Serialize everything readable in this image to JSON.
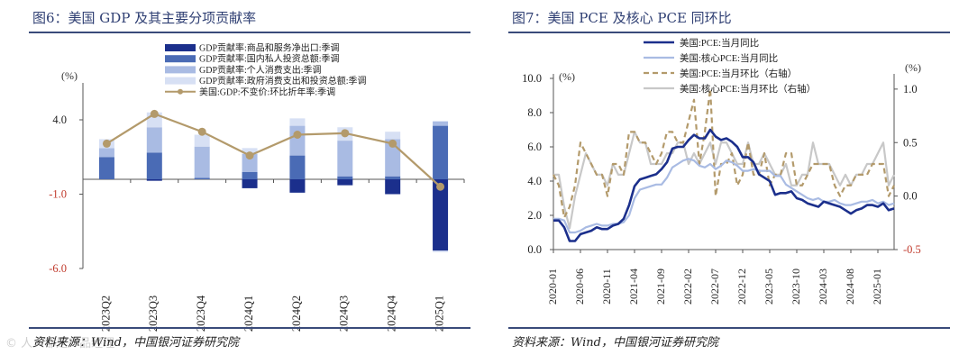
{
  "left_panel": {
    "title": "图6：美国 GDP 及其主要分项贡献率",
    "source": "资料来源：Wind，中国银河证券研究院",
    "watermark": "© 人人都是产品经理"
  },
  "right_panel": {
    "title": "图7：美国 PCE 及核心 PCE 同环比",
    "source": "资料来源：Wind，中国银河证券研究院"
  },
  "colors": {
    "dark_navy": "#1b2f8c",
    "medium_blue": "#4a6bb5",
    "light_blue": "#a9bbe3",
    "pale_blue": "#d7e0f4",
    "tan": "#b39a6b",
    "light_gray": "#c8c8c8",
    "neg_tick": "#c0392b",
    "title": "#2f3f73"
  },
  "chart_data": [
    {
      "type": "bar",
      "stacked": true,
      "title": "图6：美国 GDP 及其主要分项贡献率",
      "ylabel": "(%)",
      "ylim": [
        -6.0,
        6.0
      ],
      "yticks": [
        "4.0",
        "-1.0",
        "-6.0"
      ],
      "ytick_values": [
        4.0,
        -1.0,
        -6.0
      ],
      "categories": [
        "2023Q2",
        "2023Q3",
        "2023Q4",
        "2024Q1",
        "2024Q2",
        "2024Q3",
        "2024Q4",
        "2025Q1"
      ],
      "series": [
        {
          "name": "GDP贡献率:商品和服务净出口:季调",
          "color": "#1b2f8c",
          "values": [
            0.0,
            -0.1,
            0.0,
            -0.6,
            -0.9,
            -0.4,
            -1.0,
            -4.8
          ]
        },
        {
          "name": "GDP贡献率:国内私人投资总额:季调",
          "color": "#4a6bb5",
          "values": [
            1.5,
            1.8,
            0.1,
            0.5,
            1.6,
            0.2,
            0.2,
            3.6
          ]
        },
        {
          "name": "GDP贡献率:个人消费支出:季调",
          "color": "#a9bbe3",
          "values": [
            0.6,
            1.7,
            2.1,
            1.2,
            2.0,
            2.4,
            2.5,
            0.3
          ]
        },
        {
          "name": "GDP贡献率:政府消费支出和投资总额:季调",
          "color": "#d7e0f4",
          "values": [
            0.6,
            1.0,
            0.8,
            0.4,
            0.5,
            0.9,
            0.5,
            -0.1
          ]
        }
      ],
      "line": {
        "name": "美国:GDP:不变价:环比折年率:季调",
        "color": "#b39a6b",
        "values": [
          2.4,
          4.4,
          3.2,
          1.6,
          3.0,
          3.1,
          2.4,
          -0.5
        ]
      }
    },
    {
      "type": "line",
      "title": "图7：美国 PCE 及核心 PCE 同环比",
      "ylabel_left": "(%)",
      "ylabel_right": "(%)",
      "ylim_left": [
        0.0,
        10.0
      ],
      "ylim_right": [
        -0.5,
        1.1
      ],
      "yticks_left": [
        "10.0",
        "8.0",
        "6.0",
        "4.0",
        "2.0",
        "0.0"
      ],
      "ytick_values_left": [
        10.0,
        8.0,
        6.0,
        4.0,
        2.0,
        0.0
      ],
      "yticks_right": [
        "1.0",
        "0.5",
        "0.0",
        "-0.5"
      ],
      "ytick_values_right": [
        1.0,
        0.5,
        0.0,
        -0.5
      ],
      "xtick_labels": [
        "2020-01",
        "2020-06",
        "2020-11",
        "2021-04",
        "2021-09",
        "2022-02",
        "2022-07",
        "2022-12",
        "2023-05",
        "2023-10",
        "2024-03",
        "2024-08",
        "2025-01"
      ],
      "n_points": 64,
      "series": [
        {
          "name": "美国:PCE:当月同比",
          "axis": "left",
          "style": "solid-thick",
          "color": "#1b2f8c",
          "values": [
            1.7,
            1.7,
            1.3,
            0.5,
            0.5,
            0.9,
            1.0,
            1.1,
            1.3,
            1.2,
            1.2,
            1.4,
            1.5,
            1.8,
            2.6,
            3.7,
            4.1,
            4.2,
            4.3,
            4.4,
            4.7,
            5.1,
            5.9,
            6.0,
            6.0,
            6.4,
            6.7,
            6.5,
            6.5,
            7.0,
            6.6,
            6.4,
            6.5,
            6.3,
            6.0,
            5.4,
            5.4,
            5.1,
            4.4,
            4.2,
            4.0,
            3.2,
            3.3,
            3.3,
            3.4,
            3.0,
            2.9,
            2.7,
            2.6,
            2.5,
            2.8,
            2.7,
            2.6,
            2.5,
            2.3,
            2.1,
            2.3,
            2.4,
            2.6,
            2.6,
            2.5,
            2.7,
            2.3,
            2.4
          ]
        },
        {
          "name": "美国:核心PCE:当月同比",
          "axis": "left",
          "style": "solid",
          "color": "#a9bbe3",
          "values": [
            1.8,
            1.8,
            1.7,
            1.0,
            1.0,
            1.1,
            1.3,
            1.4,
            1.5,
            1.4,
            1.4,
            1.5,
            1.5,
            1.6,
            2.0,
            3.0,
            3.5,
            3.6,
            3.7,
            3.8,
            3.8,
            4.2,
            4.8,
            5.0,
            5.2,
            5.3,
            5.2,
            4.9,
            4.8,
            5.0,
            4.7,
            4.9,
            5.2,
            5.1,
            4.9,
            4.6,
            4.6,
            4.7,
            4.6,
            4.6,
            4.6,
            4.3,
            4.3,
            3.8,
            3.6,
            3.4,
            3.2,
            3.0,
            2.9,
            3.0,
            2.8,
            2.8,
            2.9,
            2.7,
            2.6,
            2.6,
            2.7,
            2.8,
            2.8,
            2.9,
            2.7,
            2.8,
            2.6,
            2.7
          ]
        },
        {
          "name": "美国:PCE:当月环比（右轴）",
          "axis": "right",
          "style": "dashed",
          "color": "#b39a6b",
          "values": [
            0.2,
            0.1,
            -0.2,
            -0.1,
            0.1,
            0.5,
            0.4,
            0.3,
            0.2,
            0.2,
            0.0,
            0.3,
            0.3,
            0.2,
            0.6,
            0.6,
            0.5,
            0.5,
            0.4,
            0.3,
            0.4,
            0.6,
            0.6,
            0.5,
            0.5,
            0.7,
            0.9,
            0.3,
            0.6,
            1.0,
            0.0,
            0.3,
            0.3,
            0.4,
            0.1,
            0.2,
            0.5,
            0.2,
            0.2,
            0.4,
            0.1,
            0.2,
            0.2,
            0.4,
            0.4,
            0.1,
            0.1,
            0.2,
            0.3,
            0.3,
            0.3,
            0.3,
            0.1,
            0.0,
            0.1,
            0.1,
            0.2,
            0.2,
            0.2,
            0.3,
            0.3,
            0.3,
            0.0,
            0.1
          ]
        },
        {
          "name": "美国:核心PCE:当月环比（右轴）",
          "axis": "right",
          "style": "solid",
          "color": "#c8c8c8",
          "values": [
            0.2,
            0.2,
            -0.1,
            -0.3,
            0.0,
            0.2,
            0.4,
            0.3,
            0.2,
            0.2,
            0.1,
            0.3,
            0.2,
            0.2,
            0.4,
            0.6,
            0.5,
            0.5,
            0.3,
            0.3,
            0.3,
            0.4,
            0.4,
            0.5,
            0.5,
            0.3,
            0.4,
            0.3,
            0.4,
            0.5,
            0.3,
            0.5,
            0.5,
            0.4,
            0.3,
            0.3,
            0.5,
            0.3,
            0.3,
            0.4,
            0.3,
            0.2,
            0.2,
            0.3,
            0.1,
            0.1,
            0.2,
            0.2,
            0.5,
            0.3,
            0.3,
            0.3,
            0.2,
            0.1,
            0.2,
            0.1,
            0.2,
            0.2,
            0.3,
            0.3,
            0.4,
            0.5,
            0.1,
            0.2
          ]
        }
      ]
    }
  ]
}
